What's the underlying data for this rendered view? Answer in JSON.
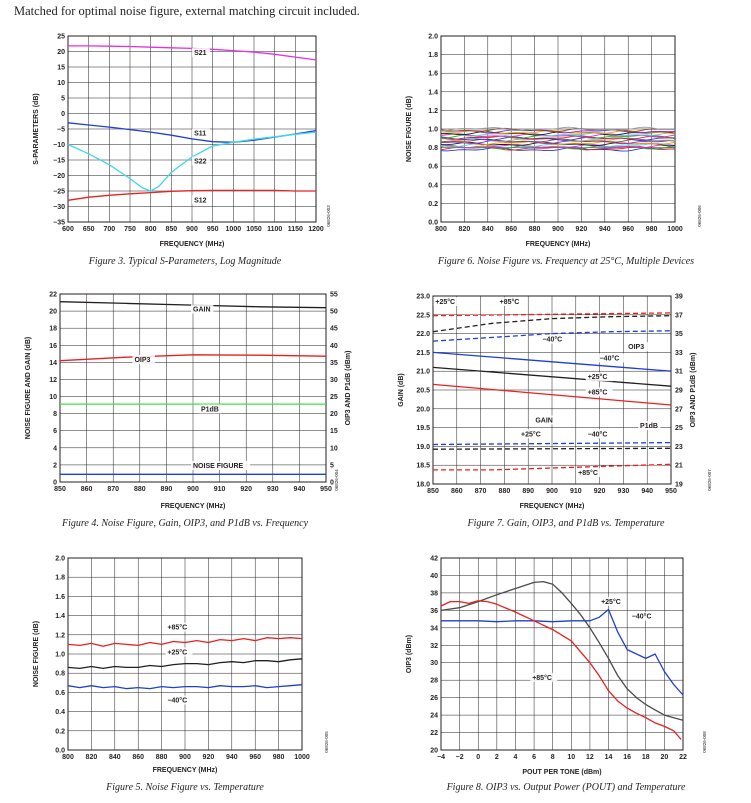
{
  "intro": "Matched for optimal noise figure, external matching circuit included.",
  "chart_data": [
    {
      "id": "fig3",
      "type": "line",
      "caption": "Figure 3. Typical S-Parameters, Log Magnitude",
      "code": "06826-003",
      "xlabel": "FREQUENCY (MHz)",
      "ylabel": "S-PARAMETERS (dB)",
      "xlim": [
        600,
        1200
      ],
      "ylim": [
        -35,
        25
      ],
      "xticks": [
        600,
        650,
        700,
        750,
        800,
        850,
        900,
        950,
        1000,
        1050,
        1100,
        1150,
        1200
      ],
      "yticks": [
        -35,
        -30,
        -25,
        -20,
        -15,
        -10,
        -5,
        0,
        5,
        10,
        15,
        20,
        25
      ],
      "grid": true,
      "series": [
        {
          "name": "S21",
          "color": "#e62ee6",
          "x": [
            600,
            650,
            700,
            750,
            800,
            850,
            900,
            950,
            1000,
            1050,
            1100,
            1150,
            1200
          ],
          "y": [
            21.8,
            21.8,
            21.7,
            21.6,
            21.4,
            21.2,
            21,
            20.7,
            20.3,
            19.8,
            19.1,
            18.2,
            17.3
          ]
        },
        {
          "name": "S11",
          "color": "#1f3fd0",
          "x": [
            600,
            650,
            700,
            750,
            800,
            850,
            900,
            950,
            1000,
            1050,
            1100,
            1150,
            1200
          ],
          "y": [
            -3,
            -3.7,
            -4.4,
            -5.2,
            -6,
            -7,
            -8.2,
            -9.1,
            -9.3,
            -8.6,
            -7.6,
            -6.6,
            -5.5
          ]
        },
        {
          "name": "S22",
          "color": "#3fd8e8",
          "x": [
            600,
            650,
            700,
            750,
            780,
            800,
            820,
            850,
            900,
            950,
            1000,
            1050,
            1100,
            1150,
            1200
          ],
          "y": [
            -10,
            -13,
            -16.5,
            -21,
            -24,
            -25,
            -23.5,
            -19,
            -14,
            -10.5,
            -9.3,
            -8.3,
            -7.5,
            -6.7,
            -6
          ]
        },
        {
          "name": "S12",
          "color": "#e82020",
          "x": [
            600,
            650,
            700,
            750,
            800,
            850,
            900,
            950,
            1000,
            1050,
            1100,
            1150,
            1200
          ],
          "y": [
            -28,
            -27,
            -26.4,
            -25.9,
            -25.5,
            -25.1,
            -24.9,
            -24.8,
            -24.8,
            -24.8,
            -24.8,
            -25,
            -25
          ]
        }
      ],
      "labels": [
        {
          "text": "S21",
          "x": 905,
          "y": 19
        },
        {
          "text": "S11",
          "x": 905,
          "y": -7
        },
        {
          "text": "S22",
          "x": 905,
          "y": -16
        },
        {
          "text": "S12",
          "x": 905,
          "y": -28.5
        }
      ]
    },
    {
      "id": "fig6",
      "type": "line",
      "caption": "Figure 6. Noise Figure vs. Frequency at 25°C, Multiple Devices",
      "code": "06826-006",
      "xlabel": "FREQUENCY (MHz)",
      "ylabel": "NOISE FIGURE (dB)",
      "xlim": [
        800,
        1000
      ],
      "ylim": [
        0,
        2.0
      ],
      "xticks": [
        800,
        820,
        840,
        860,
        880,
        900,
        920,
        940,
        960,
        980,
        1000
      ],
      "yticks": [
        0,
        0.2,
        0.4,
        0.6,
        0.8,
        1.0,
        1.2,
        1.4,
        1.6,
        1.8,
        2.0
      ],
      "grid": true,
      "devices": {
        "count": 20,
        "nf_min": 0.78,
        "nf_max": 1.0,
        "colors": [
          "#1f3fd0",
          "#e82020",
          "#2cb02c",
          "#e62ee6",
          "#3fd8e8",
          "#231f20",
          "#ff9900",
          "#8a2be2",
          "#7a5230",
          "#9aa0a6"
        ]
      }
    },
    {
      "id": "fig4",
      "type": "line",
      "caption": "Figure 4. Noise Figure, Gain, OIP3, and P1dB vs. Frequency",
      "code": "06826-004",
      "xlabel": "FREQUENCY (MHz)",
      "ylabel": "NOISE FIGURE AND GAIN (dB)",
      "y2label": "OIP3 AND P1dB (dBm)",
      "xlim": [
        850,
        950
      ],
      "ylim": [
        0,
        22
      ],
      "y2lim": [
        0,
        55
      ],
      "xticks": [
        850,
        860,
        870,
        880,
        890,
        900,
        910,
        920,
        930,
        940,
        950
      ],
      "yticks": [
        0,
        2,
        4,
        6,
        8,
        10,
        12,
        14,
        16,
        18,
        20,
        22
      ],
      "y2ticks": [
        0,
        5,
        10,
        15,
        20,
        25,
        30,
        35,
        40,
        45,
        50,
        55
      ],
      "grid": true,
      "series": [
        {
          "name": "GAIN",
          "axis": "left",
          "color": "#231f20",
          "x": [
            850,
            875,
            900,
            925,
            950
          ],
          "y": [
            21.1,
            20.9,
            20.7,
            20.5,
            20.4
          ]
        },
        {
          "name": "OIP3",
          "axis": "right",
          "color": "#e82020",
          "x": [
            850,
            875,
            900,
            925,
            950
          ],
          "y": [
            35.5,
            36.5,
            37.2,
            37.1,
            36.8
          ]
        },
        {
          "name": "P1dB",
          "axis": "right",
          "color": "#3ee03e",
          "x": [
            850,
            950
          ],
          "y": [
            22.8,
            22.8
          ]
        },
        {
          "name": "NOISE FIGURE",
          "axis": "left",
          "color": "#1f3fd0",
          "x": [
            850,
            950
          ],
          "y": [
            0.9,
            0.9
          ]
        }
      ],
      "labels": [
        {
          "text": "GAIN",
          "x": 900,
          "y": 20.0,
          "axis": "left"
        },
        {
          "text": "OIP3",
          "x": 878,
          "y": 14.1,
          "axis": "left"
        },
        {
          "text": "P1dB",
          "x": 903,
          "y": 8.3,
          "axis": "left"
        },
        {
          "text": "NOISE FIGURE",
          "x": 900,
          "y": 1.7,
          "axis": "left"
        }
      ]
    },
    {
      "id": "fig7",
      "type": "line",
      "caption": "Figure 7. Gain, OIP3, and P1dB vs. Temperature",
      "code": "06826-007",
      "xlabel": "FREQUENCY (MHz)",
      "ylabel": "GAIN (dB)",
      "y2label": "OIP3 AND P1dB (dBm)",
      "xlim": [
        850,
        950
      ],
      "ylim": [
        18.0,
        23.0
      ],
      "y2lim": [
        19,
        39
      ],
      "xticks": [
        850,
        860,
        870,
        880,
        890,
        900,
        910,
        920,
        930,
        940,
        950
      ],
      "yticks": [
        18.0,
        18.5,
        19.0,
        19.5,
        20.0,
        20.5,
        21.0,
        21.5,
        22.0,
        22.5,
        23.0
      ],
      "y2ticks": [
        19,
        21,
        23,
        25,
        27,
        29,
        31,
        33,
        35,
        37,
        39
      ],
      "grid": true,
      "series": [
        {
          "name": "OIP3 +85°C",
          "axis": "right",
          "dash": true,
          "color": "#e82020",
          "x": [
            850,
            950
          ],
          "y": [
            36.9,
            37.2
          ]
        },
        {
          "name": "OIP3 +25°C",
          "axis": "right",
          "dash": true,
          "color": "#231f20",
          "x": [
            850,
            875,
            900,
            925,
            950
          ],
          "y": [
            35.2,
            36.1,
            36.6,
            36.8,
            36.9
          ]
        },
        {
          "name": "OIP3 -40°C",
          "axis": "right",
          "dash": true,
          "color": "#1f3fd0",
          "x": [
            850,
            875,
            900,
            925,
            950
          ],
          "y": [
            34.2,
            34.6,
            35.0,
            35.2,
            35.3
          ]
        },
        {
          "name": "GAIN -40°C",
          "axis": "left",
          "dash": false,
          "color": "#1f3fd0",
          "x": [
            850,
            950
          ],
          "y": [
            21.5,
            21.0
          ]
        },
        {
          "name": "GAIN +25°C",
          "axis": "left",
          "dash": false,
          "color": "#231f20",
          "x": [
            850,
            950
          ],
          "y": [
            21.1,
            20.6
          ]
        },
        {
          "name": "GAIN +85°C",
          "axis": "left",
          "dash": false,
          "color": "#e82020",
          "x": [
            850,
            950
          ],
          "y": [
            20.65,
            20.1
          ]
        },
        {
          "name": "P1dB -40°C",
          "axis": "right",
          "dash": true,
          "color": "#1f3fd0",
          "x": [
            850,
            950
          ],
          "y": [
            23.2,
            23.4
          ]
        },
        {
          "name": "P1dB +25°C",
          "axis": "right",
          "dash": true,
          "color": "#231f20",
          "x": [
            850,
            950
          ],
          "y": [
            22.7,
            22.8
          ]
        },
        {
          "name": "P1dB +85°C",
          "axis": "right",
          "dash": true,
          "color": "#e82020",
          "x": [
            850,
            875,
            900,
            925,
            950
          ],
          "y": [
            20.5,
            20.5,
            20.7,
            20.9,
            21.1
          ]
        }
      ],
      "labels": [
        {
          "text": "+25°C",
          "x": 851,
          "y": 22.8
        },
        {
          "text": "+85°C",
          "x": 878,
          "y": 22.8
        },
        {
          "text": "−40°C",
          "x": 896,
          "y": 21.8
        },
        {
          "text": "OIP3",
          "x": 932,
          "y": 21.6
        },
        {
          "text": "−40°C",
          "x": 920,
          "y": 21.3
        },
        {
          "text": "+25°C",
          "x": 915,
          "y": 20.8
        },
        {
          "text": "+85°C",
          "x": 915,
          "y": 20.4
        },
        {
          "text": "GAIN",
          "x": 893,
          "y": 19.65
        },
        {
          "text": "P1dB",
          "x": 937,
          "y": 19.5
        },
        {
          "text": "+25°C",
          "x": 887,
          "y": 19.28
        },
        {
          "text": "−40°C",
          "x": 915,
          "y": 19.28
        },
        {
          "text": "+85°C",
          "x": 911,
          "y": 18.25
        }
      ]
    },
    {
      "id": "fig5",
      "type": "line",
      "caption": "Figure 5. Noise Figure vs. Temperature",
      "code": "06826-005",
      "xlabel": "FREQUENCY (MHz)",
      "ylabel": "NOISE FIGURE (dB)",
      "xlim": [
        800,
        1000
      ],
      "ylim": [
        0,
        2.0
      ],
      "xticks": [
        800,
        820,
        840,
        860,
        880,
        900,
        920,
        940,
        960,
        980,
        1000
      ],
      "yticks": [
        0,
        0.2,
        0.4,
        0.6,
        0.8,
        1.0,
        1.2,
        1.4,
        1.6,
        1.8,
        2.0
      ],
      "grid": true,
      "series": [
        {
          "name": "+85°C",
          "color": "#e82020",
          "x": [
            800,
            810,
            820,
            830,
            840,
            850,
            860,
            870,
            880,
            890,
            900,
            910,
            920,
            930,
            940,
            950,
            960,
            970,
            980,
            990,
            1000
          ],
          "y": [
            1.1,
            1.09,
            1.11,
            1.08,
            1.11,
            1.1,
            1.09,
            1.12,
            1.1,
            1.13,
            1.12,
            1.14,
            1.12,
            1.15,
            1.14,
            1.16,
            1.14,
            1.17,
            1.16,
            1.17,
            1.16
          ]
        },
        {
          "name": "+25°C",
          "color": "#231f20",
          "x": [
            800,
            810,
            820,
            830,
            840,
            850,
            860,
            870,
            880,
            890,
            900,
            910,
            920,
            930,
            940,
            950,
            960,
            970,
            980,
            990,
            1000
          ],
          "y": [
            0.86,
            0.85,
            0.87,
            0.85,
            0.87,
            0.86,
            0.86,
            0.88,
            0.87,
            0.89,
            0.9,
            0.9,
            0.89,
            0.91,
            0.92,
            0.91,
            0.93,
            0.93,
            0.92,
            0.94,
            0.95
          ]
        },
        {
          "name": "−40°C",
          "color": "#1f3fd0",
          "x": [
            800,
            810,
            820,
            830,
            840,
            850,
            860,
            870,
            880,
            890,
            900,
            910,
            920,
            930,
            940,
            950,
            960,
            970,
            980,
            990,
            1000
          ],
          "y": [
            0.67,
            0.65,
            0.67,
            0.65,
            0.66,
            0.64,
            0.65,
            0.64,
            0.66,
            0.65,
            0.66,
            0.66,
            0.65,
            0.67,
            0.66,
            0.66,
            0.67,
            0.65,
            0.66,
            0.67,
            0.68
          ]
        }
      ],
      "labels": [
        {
          "text": "+85°C",
          "x": 885,
          "y": 1.26
        },
        {
          "text": "+25°C",
          "x": 885,
          "y": 1.0
        },
        {
          "text": "−40°C",
          "x": 885,
          "y": 0.5
        }
      ]
    },
    {
      "id": "fig8",
      "type": "line",
      "caption": "Figure 8. OIP3 vs. Output Power (POUT) and Temperature",
      "code": "06826-008",
      "xlabel": "POUT PER TONE (dBm)",
      "ylabel": "OIP3 (dBm)",
      "xlim": [
        -4,
        22
      ],
      "ylim": [
        20,
        42
      ],
      "xticks": [
        -4,
        -2,
        0,
        2,
        4,
        6,
        8,
        10,
        12,
        14,
        16,
        18,
        20,
        22
      ],
      "xticklabels": [
        "−4",
        "−2",
        "0",
        "2",
        "4",
        "6",
        "8",
        "10",
        "12",
        "14",
        "16",
        "18",
        "20",
        "22"
      ],
      "yticks": [
        20,
        22,
        24,
        26,
        28,
        30,
        32,
        34,
        36,
        38,
        40,
        42
      ],
      "grid": true,
      "series": [
        {
          "name": "+25°C",
          "color": "#4a4a4a",
          "x": [
            -4,
            -2,
            0,
            2,
            4,
            6,
            7,
            8,
            9,
            10,
            11,
            12,
            13,
            14,
            15,
            16,
            17,
            18,
            19,
            20,
            21,
            22
          ],
          "y": [
            36,
            36.3,
            37,
            37.8,
            38.5,
            39.2,
            39.3,
            39,
            38,
            36.8,
            35.5,
            34,
            32.3,
            30.5,
            28.5,
            27,
            26,
            25.2,
            24.6,
            24,
            23.7,
            23.4
          ]
        },
        {
          "name": "−40°C",
          "color": "#1f3fd0",
          "x": [
            -4,
            -2,
            0,
            2,
            4,
            6,
            8,
            10,
            12,
            13,
            14,
            15,
            16,
            17,
            18,
            19,
            20,
            21,
            22
          ],
          "y": [
            34.8,
            34.8,
            34.8,
            34.7,
            34.8,
            34.8,
            34.7,
            34.8,
            34.8,
            35.2,
            36.1,
            33.5,
            31.5,
            31,
            30.5,
            31,
            29,
            27.5,
            26.3
          ]
        },
        {
          "name": "+85°C",
          "color": "#e82020",
          "x": [
            -4,
            -3,
            -2,
            -1,
            0,
            1,
            2,
            4,
            6,
            8,
            10,
            12,
            13,
            14,
            15,
            16,
            17,
            18,
            19,
            20,
            21,
            21.8
          ],
          "y": [
            36.5,
            37,
            37,
            36.8,
            37.1,
            37,
            36.7,
            35.8,
            34.8,
            33.8,
            32.5,
            30,
            28.5,
            26.8,
            25.6,
            24.8,
            24.2,
            23.7,
            23.1,
            22.7,
            22.2,
            21.2
          ]
        }
      ],
      "labels": [
        {
          "text": "+25°C",
          "x": 13.2,
          "y": 36.8
        },
        {
          "text": "−40°C",
          "x": 16.5,
          "y": 35.1
        },
        {
          "text": "+85°C",
          "x": 5.8,
          "y": 28.1
        }
      ]
    }
  ]
}
